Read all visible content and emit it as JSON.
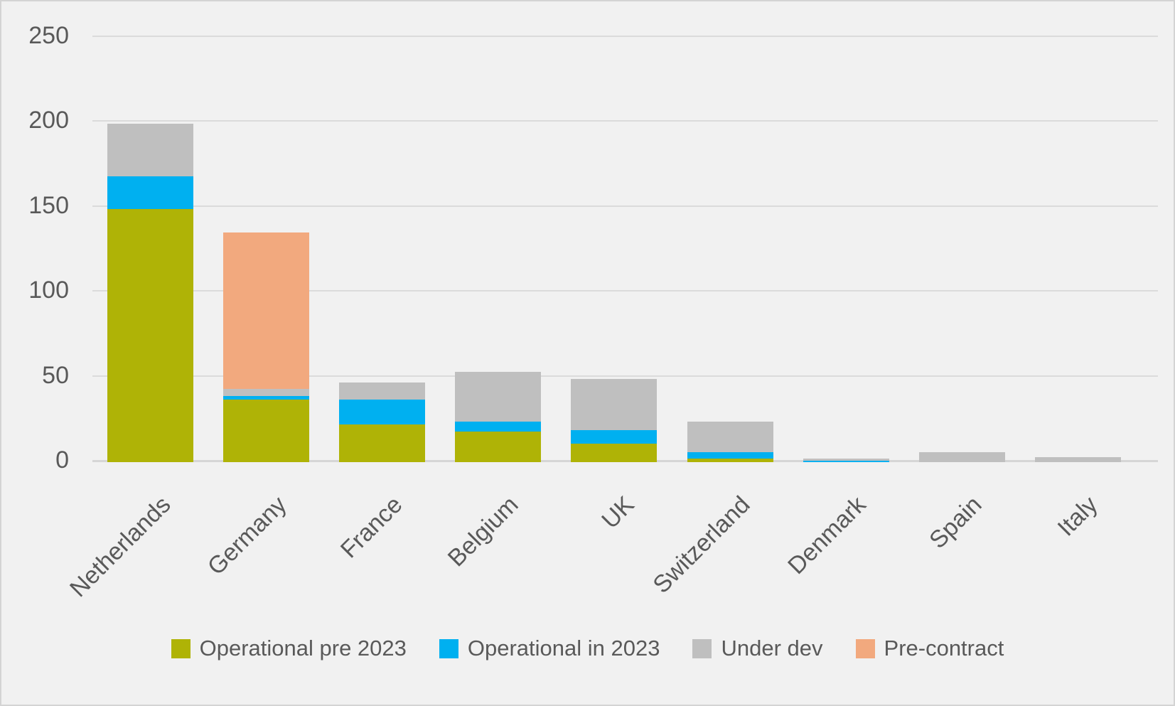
{
  "chart_data": {
    "type": "bar",
    "stacked": true,
    "title": "",
    "xlabel": "",
    "ylabel": "",
    "categories": [
      "Netherlands",
      "Germany",
      "France",
      "Belgium",
      "UK",
      "Switzerland",
      "Denmark",
      "Spain",
      "Italy"
    ],
    "series": [
      {
        "name": "Operational pre 2023",
        "color": "#AFB306",
        "values": [
          149,
          37,
          22,
          18,
          11,
          2,
          0,
          0,
          0
        ]
      },
      {
        "name": "Operational in 2023",
        "color": "#00B0F0",
        "values": [
          19,
          2,
          15,
          6,
          8,
          4,
          1,
          0,
          0
        ]
      },
      {
        "name": "Under dev",
        "color": "#BFBFBF",
        "values": [
          31,
          4,
          10,
          29,
          30,
          18,
          1,
          6,
          3
        ]
      },
      {
        "name": "Pre-contract",
        "color": "#F2A97E",
        "values": [
          0,
          92,
          0,
          0,
          0,
          0,
          0,
          0,
          0
        ]
      }
    ],
    "totals": [
      199,
      135,
      47,
      53,
      49,
      24,
      2,
      6,
      3
    ],
    "y_ticks": [
      0,
      50,
      100,
      150,
      200,
      250
    ],
    "ylim": [
      0,
      250
    ],
    "grid": true,
    "legend_position": "bottom"
  },
  "colors": {
    "background": "#F1F1F1",
    "frame_border": "#D4D4D4",
    "gridline": "#DBDBDB",
    "axis_line": "#D6D6D6",
    "text": "#595959"
  }
}
